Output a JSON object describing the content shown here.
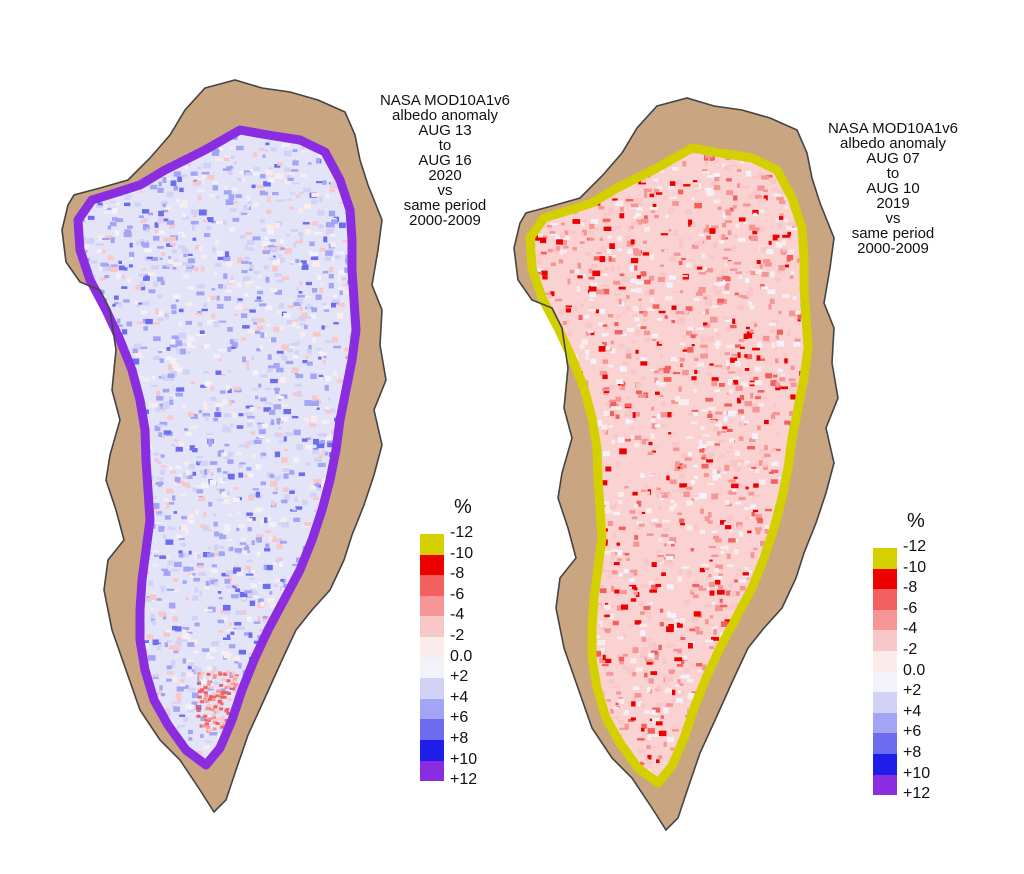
{
  "maps": [
    {
      "title_lines": [
        "NASA MOD10A1v6",
        "albedo anomaly",
        "AUG 13",
        "to",
        "AUG 16",
        "2020",
        "vs",
        "same period",
        "2000-2009"
      ],
      "dominant": "positive"
    },
    {
      "title_lines": [
        "NASA MOD10A1v6",
        "albedo anomaly",
        "AUG 07",
        "to",
        "AUG 10",
        "2019",
        "vs",
        "same period",
        "2000-2009"
      ],
      "dominant": "negative"
    }
  ],
  "legend": {
    "unit": "%",
    "labels": [
      "-12",
      "-10",
      "-8",
      "-6",
      "-4",
      "-2",
      "0.0",
      "+2",
      "+4",
      "+6",
      "+8",
      "+10",
      "+12"
    ],
    "colors": [
      "#d4d000",
      "#ee0000",
      "#f26060",
      "#f59595",
      "#f8c8c8",
      "#fbecec",
      "#f3f1fa",
      "#d2d2f6",
      "#a4a4f4",
      "#6c6cf0",
      "#1e1ee8",
      "#8a2ce0"
    ]
  },
  "land_color": "#c9a582",
  "coast_color": "#444444"
}
